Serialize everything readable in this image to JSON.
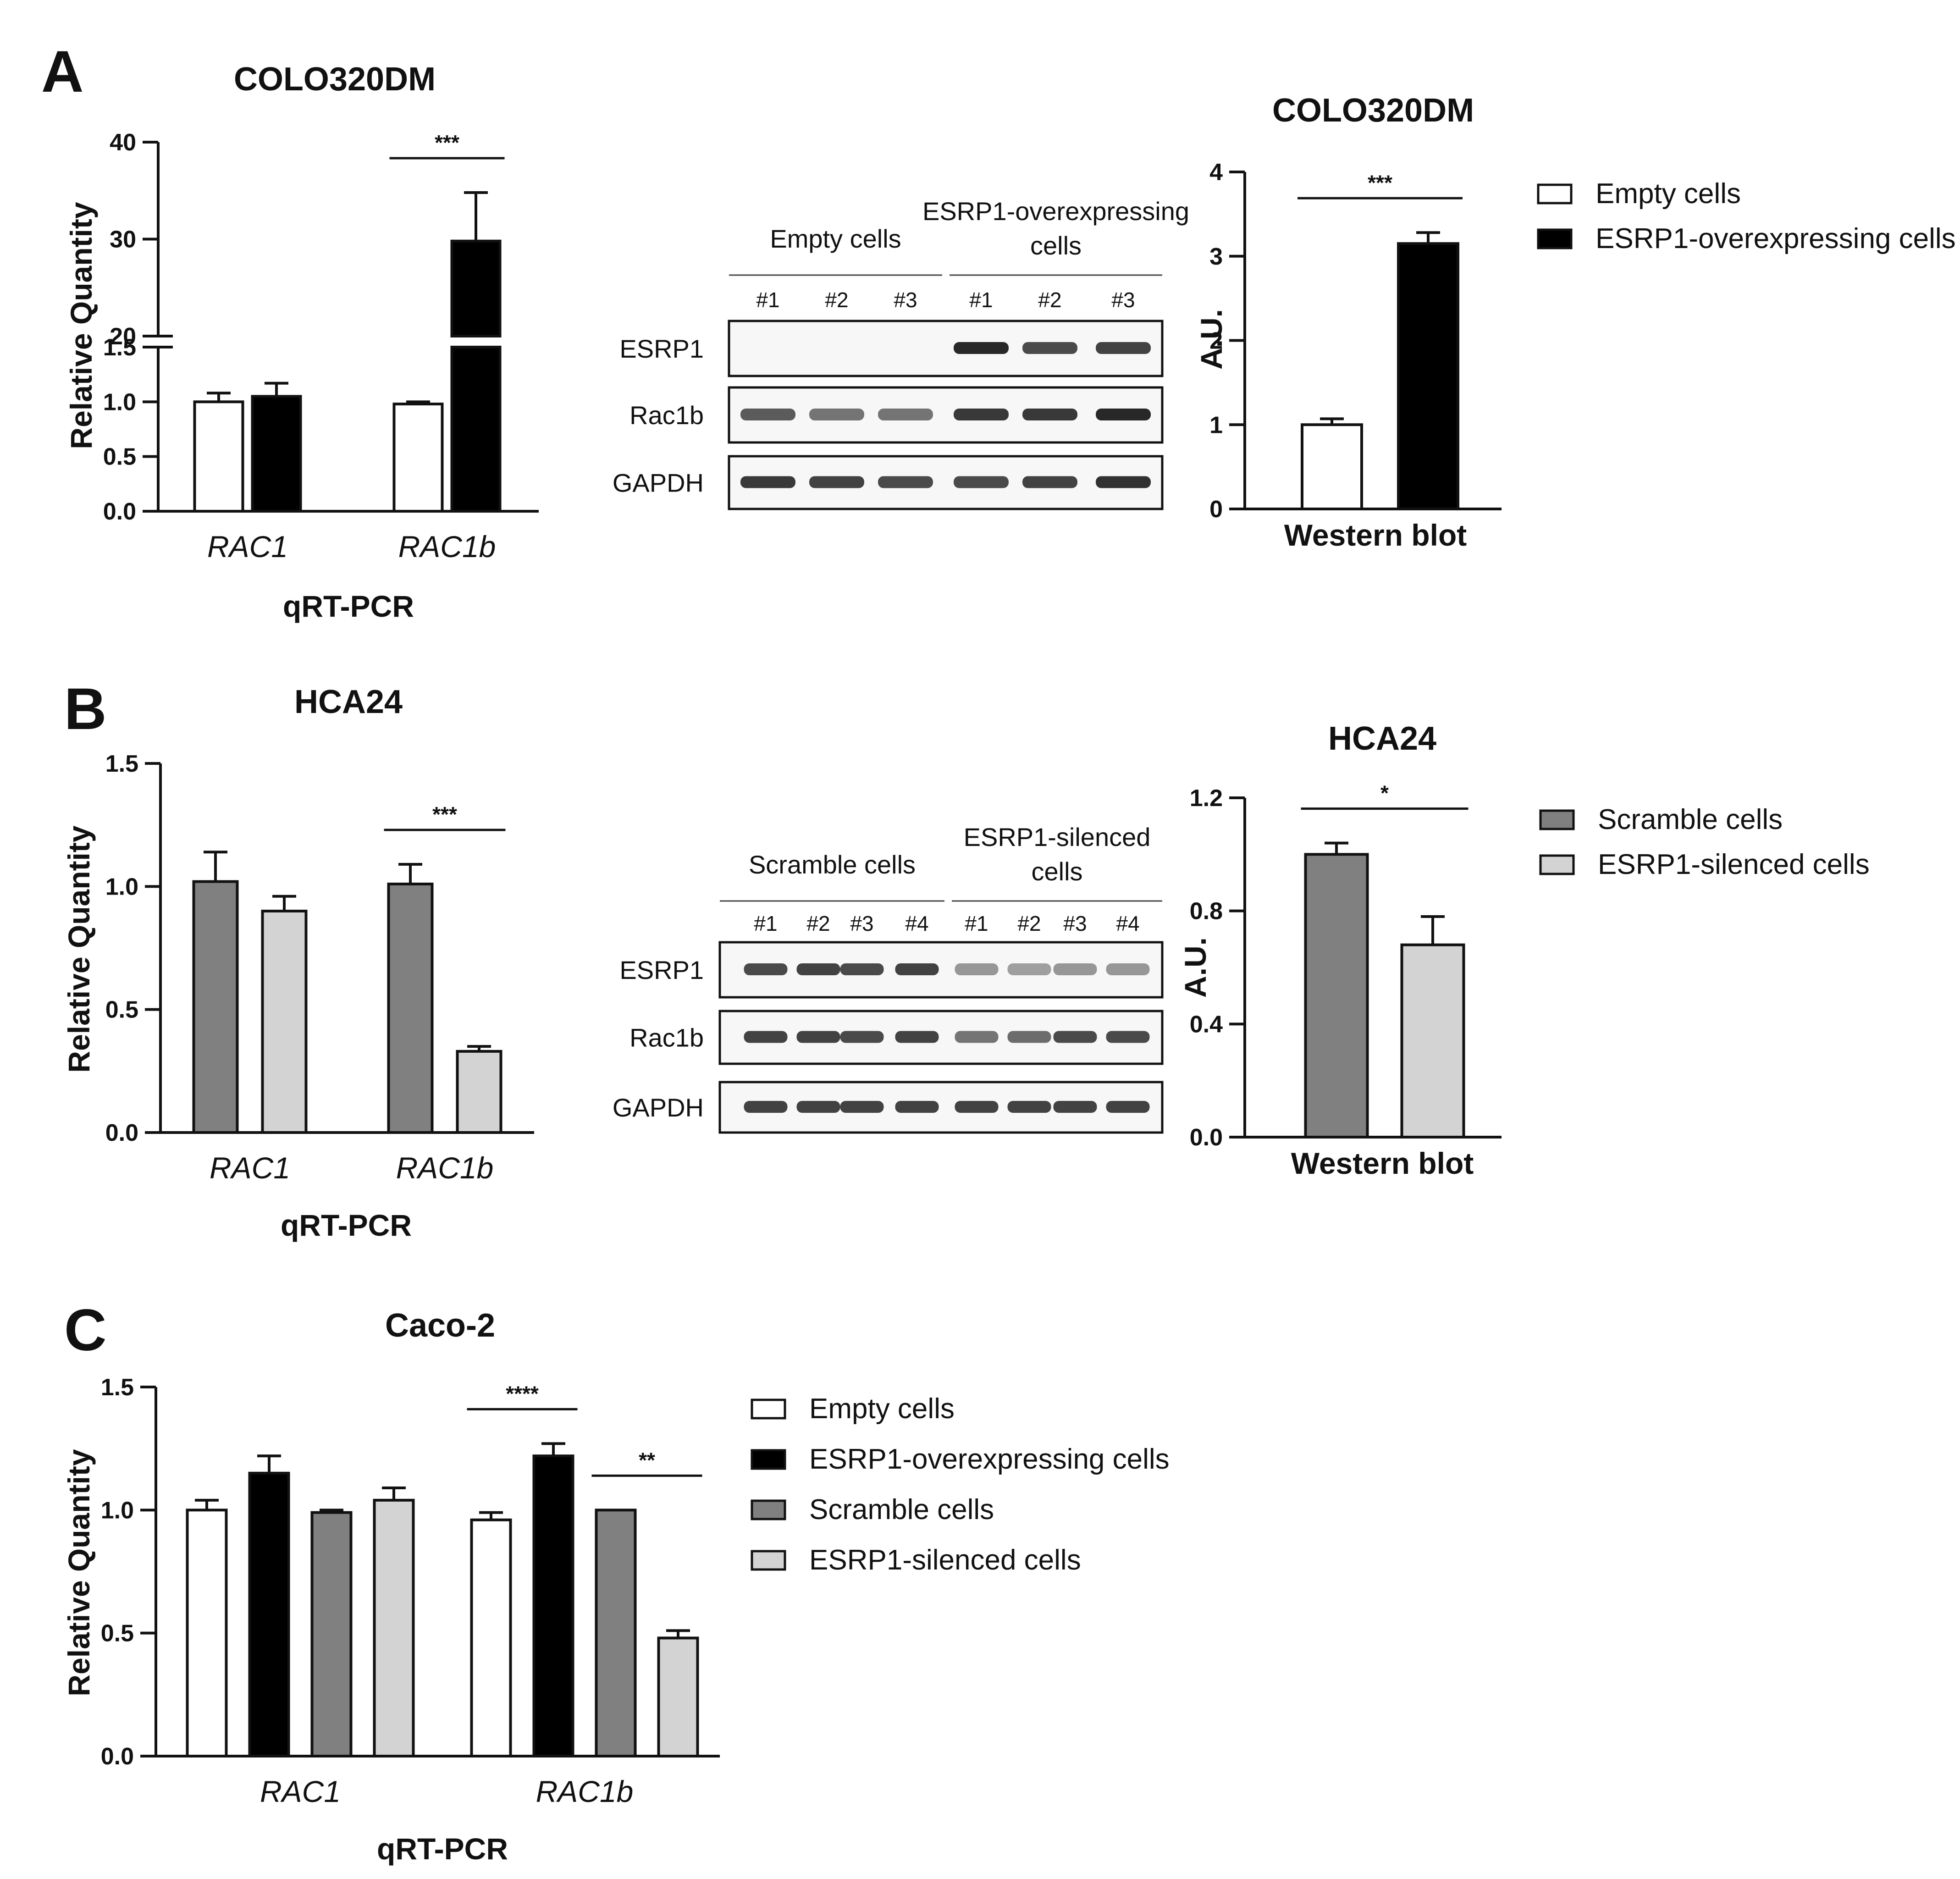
{
  "colors": {
    "empty": "#ffffff",
    "esrp1_over": "#000000",
    "scramble": "#808080",
    "esrp1_sil": "#d3d3d3"
  },
  "panels": {
    "A": {
      "letter": "A"
    },
    "B": {
      "letter": "B"
    },
    "C": {
      "letter": "C"
    }
  },
  "legends": {
    "A": [
      {
        "label": "Empty cells",
        "color_key": "empty"
      },
      {
        "label": "ESRP1-overexpressing cells",
        "color_key": "esrp1_over"
      }
    ],
    "B": [
      {
        "label": "Scramble cells",
        "color_key": "scramble"
      },
      {
        "label": "ESRP1-silenced cells",
        "color_key": "esrp1_sil"
      }
    ],
    "C": [
      {
        "label": "Empty cells",
        "color_key": "empty"
      },
      {
        "label": "ESRP1-overexpressing cells",
        "color_key": "esrp1_over"
      },
      {
        "label": "Scramble cells",
        "color_key": "scramble"
      },
      {
        "label": "ESRP1-silenced cells",
        "color_key": "esrp1_sil"
      }
    ]
  },
  "blots": {
    "A": {
      "groups": [
        {
          "label_lines": [
            "Empty cells"
          ],
          "lanes": [
            "#1",
            "#2",
            "#3"
          ]
        },
        {
          "label_lines": [
            "ESRP1-overexpressing",
            "cells"
          ],
          "lanes": [
            "#1",
            "#2",
            "#3"
          ]
        }
      ],
      "rows": [
        "ESRP1",
        "Rac1b",
        "GAPDH"
      ]
    },
    "B": {
      "groups": [
        {
          "label_lines": [
            "Scramble cells"
          ],
          "lanes": [
            "#1",
            "#2",
            "#3",
            "#4"
          ]
        },
        {
          "label_lines": [
            "ESRP1-silenced",
            "cells"
          ],
          "lanes": [
            "#1",
            "#2",
            "#3",
            "#4"
          ]
        }
      ],
      "rows": [
        "ESRP1",
        "Rac1b",
        "GAPDH"
      ]
    }
  },
  "chart_data": [
    {
      "id": "A-qpcr",
      "type": "bar",
      "title": "COLO320DM",
      "xlabel": "qRT-PCR",
      "ylabel": "Relative Quantity",
      "categories": [
        "RAC1",
        "RAC1b"
      ],
      "y_axis_break": {
        "lower_range": [
          0,
          1.5
        ],
        "upper_range": [
          20,
          40
        ]
      },
      "y_ticks_lower": [
        0.0,
        0.5,
        1.0,
        1.5
      ],
      "y_ticks_upper": [
        20,
        30,
        40
      ],
      "tick_labels_lower": [
        "0.0",
        "0.5",
        "1.0",
        "1.5"
      ],
      "tick_labels_upper": [
        "20",
        "30",
        "40"
      ],
      "series": [
        {
          "name": "Empty cells",
          "color_key": "empty",
          "values": [
            1.0,
            0.98
          ],
          "errors": [
            0.08,
            0.02
          ]
        },
        {
          "name": "ESRP1-overexpressing cells",
          "color_key": "esrp1_over",
          "values": [
            1.05,
            29.8
          ],
          "errors": [
            0.12,
            5.0
          ]
        }
      ],
      "significance": [
        {
          "category": 1,
          "label": "***"
        }
      ],
      "grid": false
    },
    {
      "id": "A-wb",
      "type": "bar",
      "title": "COLO320DM",
      "xlabel": "Western blot",
      "ylabel": "A.U.",
      "ylim": [
        0,
        4
      ],
      "y_ticks": [
        0,
        1,
        2,
        3,
        4
      ],
      "tick_labels": [
        "0",
        "1",
        "2",
        "3",
        "4"
      ],
      "series": [
        {
          "name": "Empty cells",
          "color_key": "empty",
          "values": [
            1.0
          ],
          "errors": [
            0.07
          ]
        },
        {
          "name": "ESRP1-overexpressing cells",
          "color_key": "esrp1_over",
          "values": [
            3.15
          ],
          "errors": [
            0.13
          ]
        }
      ],
      "significance": [
        {
          "label": "***"
        }
      ],
      "grid": false
    },
    {
      "id": "B-qpcr",
      "type": "bar",
      "title": "HCA24",
      "xlabel": "qRT-PCR",
      "ylabel": "Relative Quantity",
      "categories": [
        "RAC1",
        "RAC1b"
      ],
      "ylim": [
        0,
        1.5
      ],
      "y_ticks": [
        0,
        0.5,
        1.0,
        1.5
      ],
      "tick_labels": [
        "0.0",
        "0.5",
        "1.0",
        "1.5"
      ],
      "series": [
        {
          "name": "Scramble cells",
          "color_key": "scramble",
          "values": [
            1.02,
            1.01
          ],
          "errors": [
            0.12,
            0.08
          ]
        },
        {
          "name": "ESRP1-silenced cells",
          "color_key": "esrp1_sil",
          "values": [
            0.9,
            0.33
          ],
          "errors": [
            0.06,
            0.02
          ]
        }
      ],
      "significance": [
        {
          "category": 1,
          "label": "***"
        }
      ],
      "grid": false
    },
    {
      "id": "B-wb",
      "type": "bar",
      "title": "HCA24",
      "xlabel": "Western blot",
      "ylabel": "A.U.",
      "ylim": [
        0,
        1.2
      ],
      "y_ticks": [
        0,
        0.4,
        0.8,
        1.2
      ],
      "tick_labels": [
        "0.0",
        "0.4",
        "0.8",
        "1.2"
      ],
      "series": [
        {
          "name": "Scramble cells",
          "color_key": "scramble",
          "values": [
            1.0
          ],
          "errors": [
            0.04
          ]
        },
        {
          "name": "ESRP1-silenced cells",
          "color_key": "esrp1_sil",
          "values": [
            0.68
          ],
          "errors": [
            0.1
          ]
        }
      ],
      "significance": [
        {
          "label": "*"
        }
      ],
      "grid": false
    },
    {
      "id": "C-qpcr",
      "type": "bar",
      "title": "Caco-2",
      "xlabel": "qRT-PCR",
      "ylabel": "Relative Quantity",
      "categories": [
        "RAC1",
        "RAC1b"
      ],
      "ylim": [
        0,
        1.5
      ],
      "y_ticks": [
        0,
        0.5,
        1.0,
        1.5
      ],
      "tick_labels": [
        "0.0",
        "0.5",
        "1.0",
        "1.5"
      ],
      "series": [
        {
          "name": "Empty cells",
          "color_key": "empty",
          "values": [
            1.0,
            0.96
          ],
          "errors": [
            0.04,
            0.03
          ]
        },
        {
          "name": "ESRP1-overexpressing cells",
          "color_key": "esrp1_over",
          "values": [
            1.15,
            1.22
          ],
          "errors": [
            0.07,
            0.05
          ]
        },
        {
          "name": "Scramble cells",
          "color_key": "scramble",
          "values": [
            0.99,
            1.0
          ],
          "errors": [
            0.01,
            0.0
          ]
        },
        {
          "name": "ESRP1-silenced cells",
          "color_key": "esrp1_sil",
          "values": [
            1.04,
            0.48
          ],
          "errors": [
            0.05,
            0.03
          ]
        }
      ],
      "significance": [
        {
          "category": 1,
          "pair": [
            0,
            1
          ],
          "label": "****"
        },
        {
          "category": 1,
          "pair": [
            2,
            3
          ],
          "label": "**"
        }
      ],
      "grid": false
    }
  ]
}
